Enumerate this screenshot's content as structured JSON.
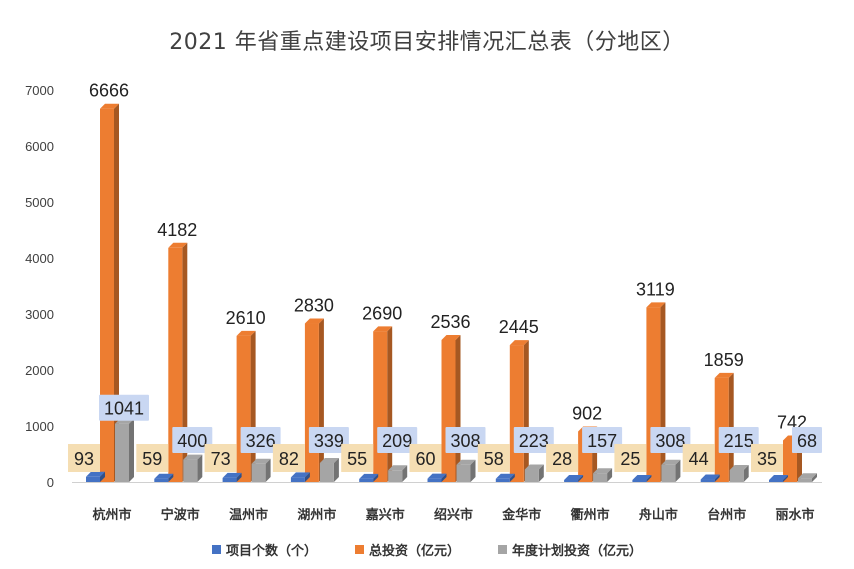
{
  "colors": {
    "series1": "#4472C4",
    "series2": "#ED7D31",
    "series3": "#A5A5A5",
    "label_box1": "#F5DEB3",
    "label_box3": "#C9D7F2"
  },
  "chart_data": {
    "type": "bar",
    "title": "2021 年省重点建设项目安排情况汇总表（分地区）",
    "categories": [
      "杭州市",
      "宁波市",
      "温州市",
      "湖州市",
      "嘉兴市",
      "绍兴市",
      "金华市",
      "衢州市",
      "舟山市",
      "台州市",
      "丽水市"
    ],
    "series": [
      {
        "name": "项目个数（个）",
        "values": [
          93,
          59,
          73,
          82,
          55,
          60,
          58,
          28,
          25,
          44,
          35
        ]
      },
      {
        "name": "总投资（亿元）",
        "values": [
          6666,
          4182,
          2610,
          2830,
          2690,
          2536,
          2445,
          902,
          3119,
          1859,
          742
        ]
      },
      {
        "name": "年度计划投资（亿元）",
        "values": [
          1041,
          400,
          326,
          339,
          209,
          308,
          223,
          157,
          308,
          215,
          68
        ]
      }
    ],
    "ylim": [
      0,
      7000
    ],
    "yticks": [
      0,
      1000,
      2000,
      3000,
      4000,
      5000,
      6000,
      7000
    ],
    "grid": false,
    "legend": "bottom"
  }
}
